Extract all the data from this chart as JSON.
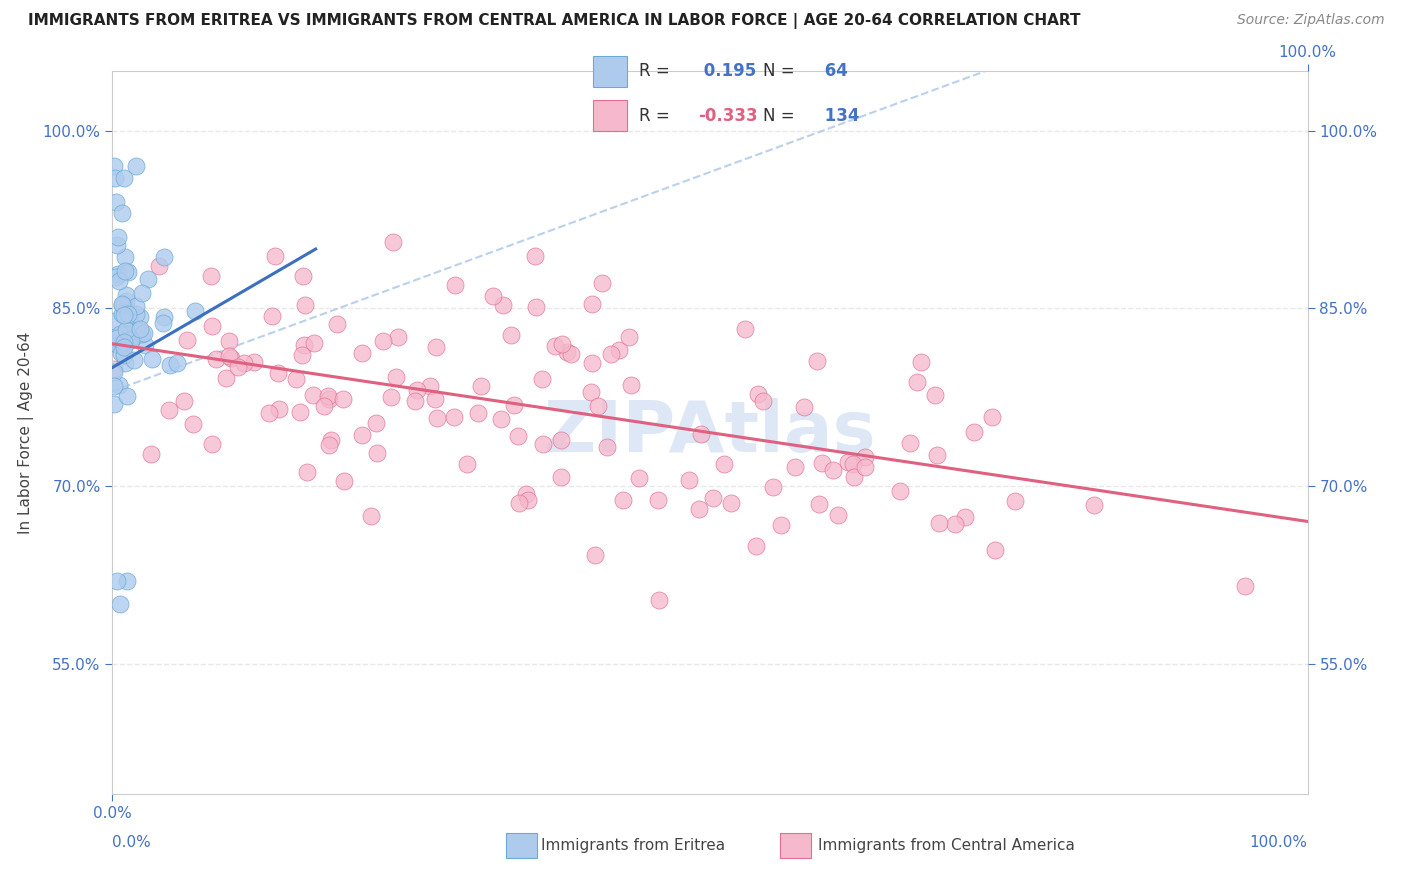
{
  "title": "IMMIGRANTS FROM ERITREA VS IMMIGRANTS FROM CENTRAL AMERICA IN LABOR FORCE | AGE 20-64 CORRELATION CHART",
  "source": "Source: ZipAtlas.com",
  "ylabel": "In Labor Force | Age 20-64",
  "y_ticks": [
    0.55,
    0.7,
    0.85,
    1.0
  ],
  "y_tick_labels": [
    "55.0%",
    "70.0%",
    "85.0%",
    "100.0%"
  ],
  "xmin": 0.0,
  "xmax": 1.0,
  "ymin": 0.44,
  "ymax": 1.05,
  "eritrea_R": 0.195,
  "eritrea_N": 64,
  "central_america_R": -0.333,
  "central_america_N": 134,
  "eritrea_color": "#aecbee",
  "eritrea_edge_color": "#6aaad4",
  "eritrea_line_color": "#3b6fbf",
  "central_america_color": "#f5b8cc",
  "central_america_edge_color": "#e07090",
  "central_america_line_color": "#e06080",
  "watermark_color": "#c8d8f0",
  "background_color": "#ffffff",
  "grid_color": "#e8e8e8",
  "title_fontsize": 11,
  "axis_label_fontsize": 11,
  "tick_fontsize": 11,
  "legend_fontsize": 12,
  "source_fontsize": 10
}
